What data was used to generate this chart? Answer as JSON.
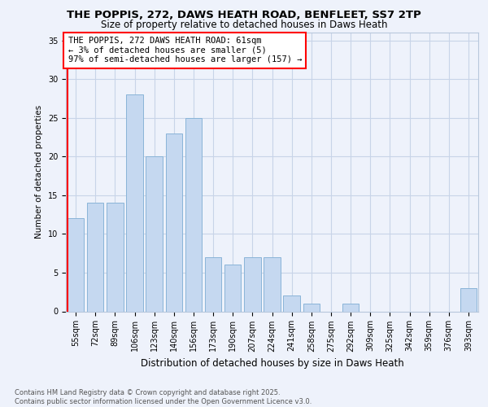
{
  "title1": "THE POPPIS, 272, DAWS HEATH ROAD, BENFLEET, SS7 2TP",
  "title2": "Size of property relative to detached houses in Daws Heath",
  "xlabel": "Distribution of detached houses by size in Daws Heath",
  "ylabel": "Number of detached properties",
  "categories": [
    "55sqm",
    "72sqm",
    "89sqm",
    "106sqm",
    "123sqm",
    "140sqm",
    "156sqm",
    "173sqm",
    "190sqm",
    "207sqm",
    "224sqm",
    "241sqm",
    "258sqm",
    "275sqm",
    "292sqm",
    "309sqm",
    "325sqm",
    "342sqm",
    "359sqm",
    "376sqm",
    "393sqm"
  ],
  "values": [
    12,
    14,
    14,
    28,
    20,
    23,
    25,
    7,
    6,
    7,
    7,
    2,
    1,
    0,
    1,
    0,
    0,
    0,
    0,
    0,
    3
  ],
  "bar_color": "#c5d8f0",
  "bar_edge_color": "#8ab4d8",
  "annotation_box_text": "THE POPPIS, 272 DAWS HEATH ROAD: 61sqm\n← 3% of detached houses are smaller (5)\n97% of semi-detached houses are larger (157) →",
  "ylim": [
    0,
    36
  ],
  "yticks": [
    0,
    5,
    10,
    15,
    20,
    25,
    30,
    35
  ],
  "background_color": "#eef2fb",
  "footer": "Contains HM Land Registry data © Crown copyright and database right 2025.\nContains public sector information licensed under the Open Government Licence v3.0.",
  "grid_color": "#c8d4e8",
  "title1_fontsize": 9.5,
  "title2_fontsize": 8.5,
  "xlabel_fontsize": 8.5,
  "ylabel_fontsize": 7.5,
  "tick_fontsize": 7,
  "footer_fontsize": 6,
  "ann_fontsize": 7.5
}
